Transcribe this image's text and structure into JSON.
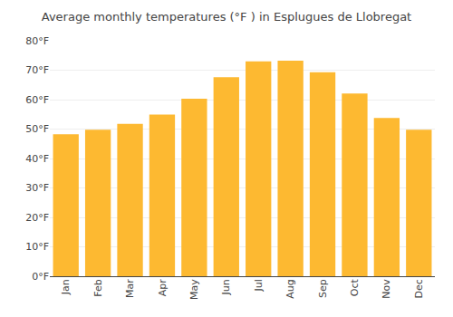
{
  "chart_data": {
    "type": "bar",
    "title": "Average monthly temperatures (°F ) in Esplugues de Llobregat",
    "categories": [
      "Jan",
      "Feb",
      "Mar",
      "Apr",
      "May",
      "Jun",
      "Jul",
      "Aug",
      "Sep",
      "Oct",
      "Nov",
      "Dec"
    ],
    "values": [
      48.2,
      49.8,
      51.8,
      54.9,
      60.3,
      67.6,
      73.0,
      73.2,
      69.3,
      62.1,
      53.8,
      49.8
    ],
    "color": "#FDB931",
    "ylim": [
      0,
      80
    ],
    "yticks": [
      {
        "value": 0,
        "label": "0°F"
      },
      {
        "value": 10,
        "label": "10°F"
      },
      {
        "value": 20,
        "label": "20°F"
      },
      {
        "value": 30,
        "label": "30°F"
      },
      {
        "value": 40,
        "label": "40°F"
      },
      {
        "value": 50,
        "label": "50°F"
      },
      {
        "value": 60,
        "label": "60°F"
      },
      {
        "value": 70,
        "label": "70°F"
      },
      {
        "value": 80,
        "label": "80°F"
      }
    ],
    "grid": true
  }
}
